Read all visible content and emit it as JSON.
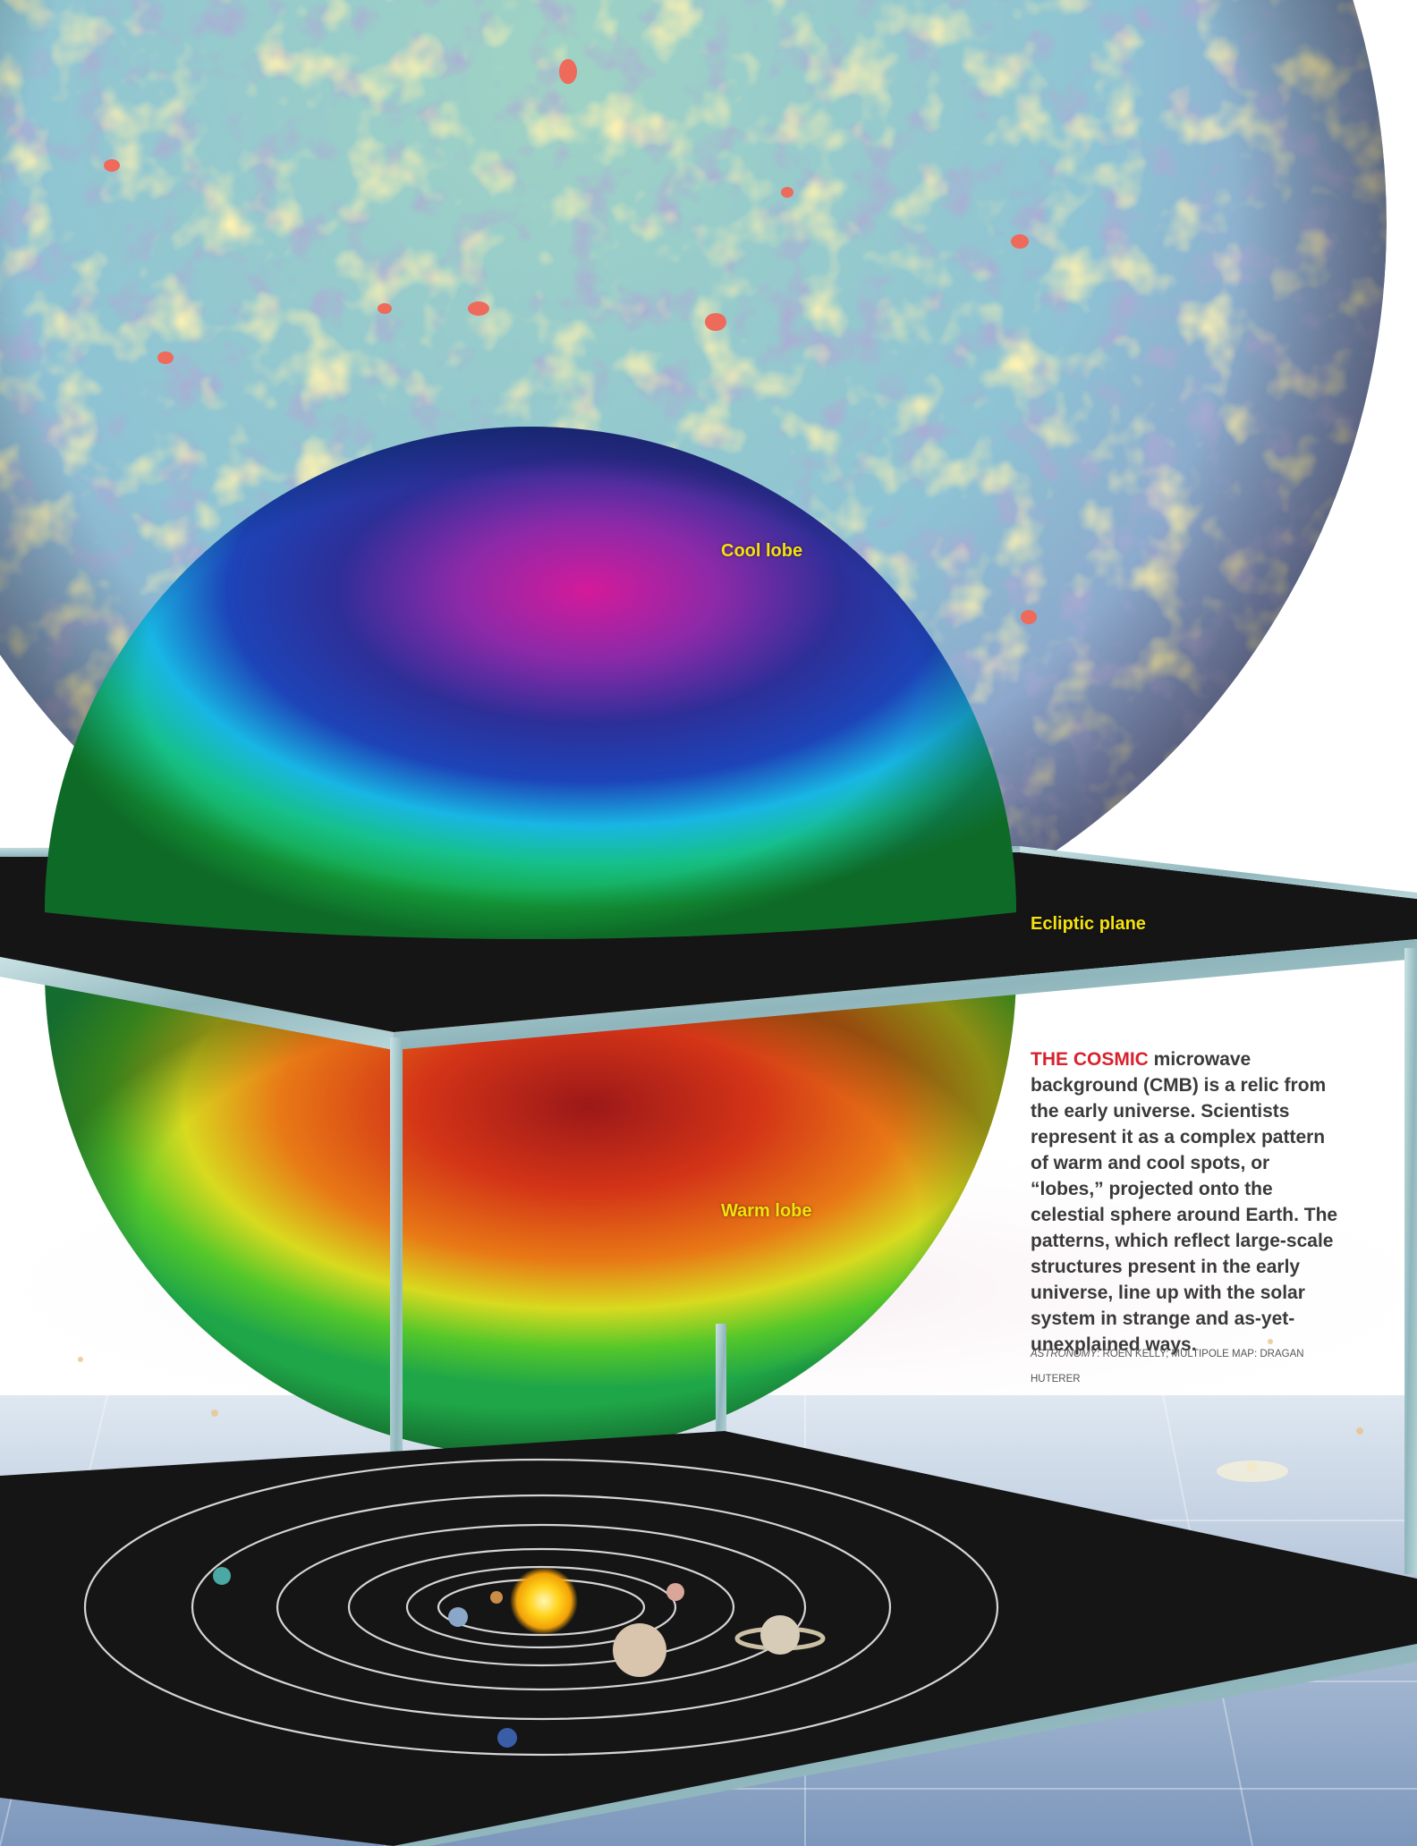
{
  "labels": {
    "cool_lobe": "Cool lobe",
    "ecliptic_plane": "Ecliptic plane",
    "warm_lobe": "Warm lobe"
  },
  "caption": {
    "lead": "THE COSMIC",
    "body": " microwave background (CMB) is a relic from the early universe. Scientists represent it as a complex pattern of warm and cool spots, or “lobes,” projected onto the celestial sphere around Earth. The patterns, which reflect large-scale structures present in the early universe, line up with the solar system in strange and as-yet-unexplained ways."
  },
  "credit": {
    "publication": "Astronomy",
    "rest": ": Roen Kelly; Multipole map: Dragan Huterer"
  },
  "colors": {
    "label_yellow": "#f4e10e",
    "caption_red": "#d8222e",
    "plane_black": "#151515",
    "frame_steel": "#9cc4c8"
  }
}
